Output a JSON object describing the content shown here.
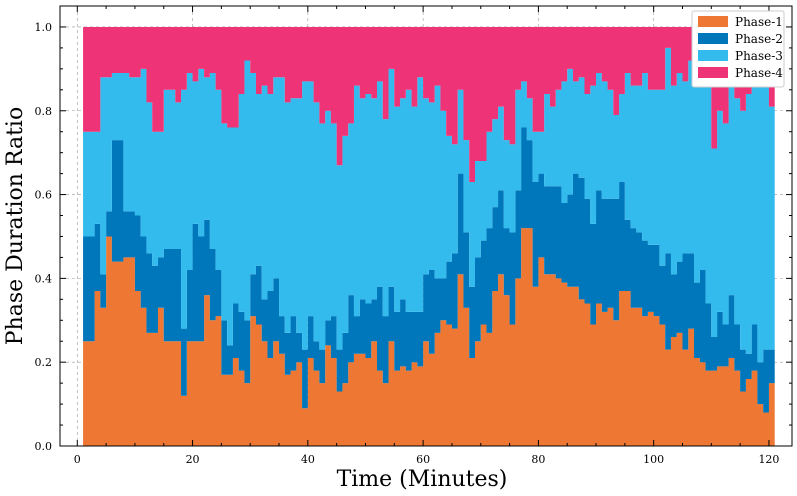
{
  "chart_data": {
    "type": "area",
    "subtype": "stacked-step",
    "xlabel": "Time (Minutes)",
    "ylabel": "Phase Duration Ratio",
    "xlim": [
      -3,
      124
    ],
    "ylim": [
      0,
      1.05
    ],
    "xticks": [
      0,
      20,
      40,
      60,
      80,
      100,
      120
    ],
    "yticks": [
      0.0,
      0.2,
      0.4,
      0.6,
      0.8,
      1.0
    ],
    "xtick_labels": [
      "0",
      "20",
      "40",
      "60",
      "80",
      "100",
      "120"
    ],
    "ytick_labels": [
      "0.0",
      "0.2",
      "0.4",
      "0.6",
      "0.8",
      "1.0"
    ],
    "grid": true,
    "legend_position": "top-right",
    "x": [
      1,
      2,
      3,
      4,
      5,
      6,
      7,
      8,
      9,
      10,
      11,
      12,
      13,
      14,
      15,
      16,
      17,
      18,
      19,
      20,
      21,
      22,
      23,
      24,
      25,
      26,
      27,
      28,
      29,
      30,
      31,
      32,
      33,
      34,
      35,
      36,
      37,
      38,
      39,
      40,
      41,
      42,
      43,
      44,
      45,
      46,
      47,
      48,
      49,
      50,
      51,
      52,
      53,
      54,
      55,
      56,
      57,
      58,
      59,
      60,
      61,
      62,
      63,
      64,
      65,
      66,
      67,
      68,
      69,
      70,
      71,
      72,
      73,
      74,
      75,
      76,
      77,
      78,
      79,
      80,
      81,
      82,
      83,
      84,
      85,
      86,
      87,
      88,
      89,
      90,
      91,
      92,
      93,
      94,
      95,
      96,
      97,
      98,
      99,
      100,
      101,
      102,
      103,
      104,
      105,
      106,
      107,
      108,
      109,
      110,
      111,
      112,
      113,
      114,
      115,
      116,
      117,
      118,
      119,
      120
    ],
    "series": [
      {
        "name": "Phase-1",
        "color": "#ee7733",
        "values": [
          0.25,
          0.25,
          0.37,
          0.33,
          0.5,
          0.44,
          0.44,
          0.45,
          0.45,
          0.37,
          0.33,
          0.27,
          0.27,
          0.33,
          0.25,
          0.25,
          0.25,
          0.12,
          0.25,
          0.25,
          0.25,
          0.36,
          0.3,
          0.31,
          0.17,
          0.17,
          0.21,
          0.18,
          0.15,
          0.31,
          0.29,
          0.25,
          0.21,
          0.25,
          0.22,
          0.17,
          0.18,
          0.2,
          0.09,
          0.21,
          0.18,
          0.15,
          0.24,
          0.21,
          0.13,
          0.15,
          0.2,
          0.22,
          0.22,
          0.21,
          0.25,
          0.18,
          0.15,
          0.25,
          0.18,
          0.19,
          0.18,
          0.2,
          0.19,
          0.25,
          0.22,
          0.27,
          0.3,
          0.29,
          0.28,
          0.41,
          0.33,
          0.21,
          0.25,
          0.29,
          0.27,
          0.37,
          0.41,
          0.36,
          0.29,
          0.4,
          0.52,
          0.52,
          0.38,
          0.45,
          0.41,
          0.41,
          0.4,
          0.39,
          0.38,
          0.38,
          0.35,
          0.34,
          0.29,
          0.34,
          0.32,
          0.33,
          0.3,
          0.37,
          0.37,
          0.33,
          0.33,
          0.31,
          0.32,
          0.31,
          0.29,
          0.23,
          0.26,
          0.27,
          0.23,
          0.28,
          0.21,
          0.2,
          0.18,
          0.18,
          0.19,
          0.19,
          0.21,
          0.18,
          0.13,
          0.16,
          0.18,
          0.1,
          0.08,
          0.15
        ]
      },
      {
        "name": "Phase-2",
        "color": "#0077bb",
        "values": [
          0.25,
          0.25,
          0.16,
          0.08,
          0.06,
          0.29,
          0.29,
          0.11,
          0.11,
          0.18,
          0.17,
          0.19,
          0.16,
          0.12,
          0.22,
          0.22,
          0.22,
          0.16,
          0.17,
          0.28,
          0.25,
          0.18,
          0.17,
          0.11,
          0.13,
          0.07,
          0.13,
          0.14,
          0.15,
          0.1,
          0.14,
          0.1,
          0.16,
          0.15,
          0.09,
          0.1,
          0.13,
          0.07,
          0.14,
          0.1,
          0.07,
          0.08,
          0.06,
          0.1,
          0.1,
          0.12,
          0.16,
          0.09,
          0.13,
          0.13,
          0.1,
          0.2,
          0.16,
          0.13,
          0.14,
          0.16,
          0.14,
          0.12,
          0.13,
          0.16,
          0.2,
          0.13,
          0.1,
          0.15,
          0.18,
          0.24,
          0.18,
          0.17,
          0.2,
          0.2,
          0.25,
          0.2,
          0.2,
          0.16,
          0.22,
          0.21,
          0.24,
          0.21,
          0.25,
          0.2,
          0.21,
          0.21,
          0.22,
          0.19,
          0.22,
          0.27,
          0.29,
          0.25,
          0.24,
          0.27,
          0.27,
          0.26,
          0.29,
          0.26,
          0.17,
          0.19,
          0.18,
          0.18,
          0.16,
          0.17,
          0.14,
          0.23,
          0.15,
          0.17,
          0.23,
          0.18,
          0.18,
          0.22,
          0.16,
          0.08,
          0.13,
          0.1,
          0.15,
          0.11,
          0.1,
          0.06,
          0.11,
          0.1,
          0.15,
          0.08
        ]
      },
      {
        "name": "Phase-3",
        "color": "#33bbee",
        "values": [
          0.25,
          0.25,
          0.22,
          0.47,
          0.32,
          0.16,
          0.16,
          0.33,
          0.32,
          0.33,
          0.4,
          0.36,
          0.32,
          0.3,
          0.38,
          0.38,
          0.35,
          0.57,
          0.47,
          0.34,
          0.4,
          0.34,
          0.42,
          0.43,
          0.47,
          0.52,
          0.42,
          0.52,
          0.62,
          0.48,
          0.41,
          0.51,
          0.47,
          0.48,
          0.57,
          0.55,
          0.52,
          0.56,
          0.64,
          0.56,
          0.57,
          0.54,
          0.5,
          0.46,
          0.44,
          0.47,
          0.41,
          0.55,
          0.48,
          0.5,
          0.48,
          0.49,
          0.47,
          0.52,
          0.49,
          0.48,
          0.53,
          0.49,
          0.56,
          0.42,
          0.4,
          0.46,
          0.4,
          0.3,
          0.26,
          0.2,
          0.22,
          0.25,
          0.23,
          0.19,
          0.23,
          0.21,
          0.2,
          0.21,
          0.21,
          0.24,
          0.11,
          0.1,
          0.12,
          0.1,
          0.22,
          0.19,
          0.23,
          0.29,
          0.3,
          0.22,
          0.24,
          0.25,
          0.33,
          0.28,
          0.28,
          0.26,
          0.2,
          0.21,
          0.35,
          0.34,
          0.35,
          0.4,
          0.37,
          0.37,
          0.42,
          0.49,
          0.45,
          0.45,
          0.41,
          0.46,
          0.51,
          0.52,
          0.55,
          0.45,
          0.48,
          0.48,
          0.58,
          0.54,
          0.57,
          0.62,
          0.62,
          0.66,
          0.64,
          0.58
        ]
      },
      {
        "name": "Phase-4",
        "color": "#ee3377",
        "values": [
          0.25,
          0.25,
          0.25,
          0.12,
          0.12,
          0.11,
          0.11,
          0.11,
          0.12,
          0.12,
          0.1,
          0.18,
          0.25,
          0.25,
          0.15,
          0.15,
          0.18,
          0.15,
          0.11,
          0.13,
          0.1,
          0.12,
          0.11,
          0.15,
          0.23,
          0.24,
          0.24,
          0.16,
          0.08,
          0.11,
          0.16,
          0.14,
          0.16,
          0.12,
          0.12,
          0.18,
          0.17,
          0.17,
          0.13,
          0.13,
          0.18,
          0.23,
          0.2,
          0.23,
          0.33,
          0.26,
          0.23,
          0.14,
          0.17,
          0.16,
          0.17,
          0.13,
          0.22,
          0.1,
          0.19,
          0.17,
          0.15,
          0.19,
          0.12,
          0.17,
          0.18,
          0.14,
          0.2,
          0.26,
          0.28,
          0.15,
          0.27,
          0.37,
          0.32,
          0.32,
          0.25,
          0.22,
          0.19,
          0.27,
          0.28,
          0.15,
          0.13,
          0.17,
          0.25,
          0.25,
          0.16,
          0.19,
          0.15,
          0.13,
          0.1,
          0.13,
          0.12,
          0.16,
          0.14,
          0.11,
          0.13,
          0.15,
          0.21,
          0.16,
          0.11,
          0.14,
          0.14,
          0.11,
          0.15,
          0.15,
          0.15,
          0.05,
          0.14,
          0.11,
          0.13,
          0.08,
          0.1,
          0.06,
          0.11,
          0.29,
          0.2,
          0.23,
          0.06,
          0.17,
          0.2,
          0.16,
          0.09,
          0.14,
          0.13,
          0.19
        ]
      }
    ]
  }
}
